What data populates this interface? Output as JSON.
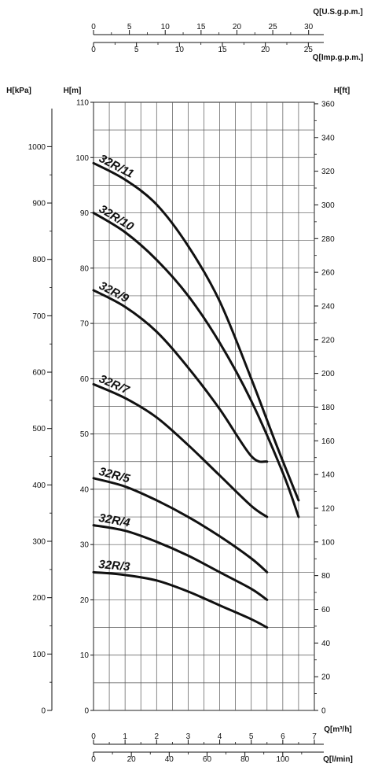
{
  "chart_data": {
    "type": "line",
    "title": "",
    "axes": {
      "left_m": {
        "label": "H[m]",
        "min": 0,
        "max": 110,
        "ticks": [
          0,
          10,
          20,
          30,
          40,
          50,
          60,
          70,
          80,
          90,
          100,
          110
        ]
      },
      "left_kpa": {
        "label": "H[kPa]",
        "min": 0,
        "max": 1078.7,
        "ticks": [
          0,
          100,
          200,
          300,
          400,
          500,
          600,
          700,
          800,
          900,
          1000
        ]
      },
      "right_ft": {
        "label": "H[ft]",
        "min": 0,
        "max": 360.9,
        "ticks": [
          0,
          20,
          40,
          60,
          80,
          100,
          120,
          140,
          160,
          180,
          200,
          220,
          240,
          260,
          280,
          300,
          320,
          340,
          360
        ]
      },
      "bottom_m3h": {
        "label": "Q[m³/h]",
        "min": 0,
        "max": 7,
        "ticks": [
          0,
          1,
          2,
          3,
          4,
          5,
          6,
          7
        ]
      },
      "bottom_lmin": {
        "label": "Q[l/min]",
        "min": 0,
        "max": 116.7,
        "ticks": [
          0,
          20,
          40,
          60,
          80,
          100
        ]
      },
      "top_usgpm": {
        "label": "Q[U.S.g.p.m.]",
        "min": 0,
        "max": 30.8,
        "ticks": [
          0,
          5,
          10,
          15,
          20,
          25,
          30
        ]
      },
      "top_impgpm": {
        "label": "Q[Imp.g.p.m.]",
        "min": 0,
        "max": 25.7,
        "ticks": [
          0,
          5,
          10,
          15,
          20,
          25
        ]
      }
    },
    "grid": true,
    "series": [
      {
        "name": "32R/11",
        "x": [
          0,
          1,
          2,
          3,
          4,
          5,
          5.8,
          6.5
        ],
        "y": [
          99,
          96,
          91.5,
          84,
          74,
          60,
          48,
          38
        ]
      },
      {
        "name": "32R/10",
        "x": [
          0,
          1,
          2,
          3,
          4,
          5,
          6,
          6.5
        ],
        "y": [
          90,
          86.5,
          81.5,
          75,
          66.5,
          56,
          43,
          35
        ]
      },
      {
        "name": "32R/9",
        "x": [
          0,
          1,
          2,
          3,
          4,
          5,
          5.5
        ],
        "y": [
          76,
          73,
          68.5,
          62,
          54.5,
          46,
          45
        ]
      },
      {
        "name": "32R/7",
        "x": [
          0,
          1,
          2,
          3,
          4,
          5,
          5.5
        ],
        "y": [
          59,
          56.5,
          53,
          48,
          42.5,
          37,
          35
        ]
      },
      {
        "name": "32R/5",
        "x": [
          0,
          1,
          2,
          3,
          4,
          5,
          5.5
        ],
        "y": [
          42,
          40.5,
          38,
          35,
          31.5,
          27.5,
          25
        ]
      },
      {
        "name": "32R/4",
        "x": [
          0,
          1,
          2,
          3,
          4,
          5,
          5.5
        ],
        "y": [
          33.5,
          32.5,
          30.5,
          28,
          25,
          22,
          20
        ]
      },
      {
        "name": "32R/3",
        "x": [
          0,
          1,
          2,
          3,
          4,
          5,
          5.5
        ],
        "y": [
          25,
          24.5,
          23.5,
          21.5,
          19,
          16.5,
          15
        ]
      }
    ]
  }
}
